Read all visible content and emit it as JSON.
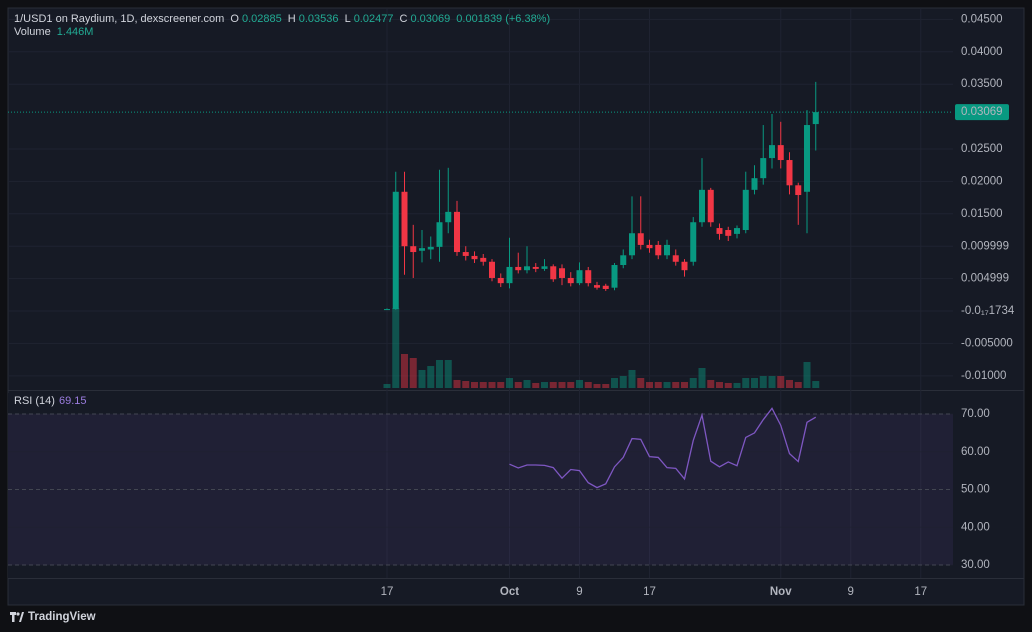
{
  "chart_data": [
    {
      "type": "candlestick",
      "title": "1/USD1 on Raydium, 1D, dexscreener.com",
      "ohlc_labels": [
        "O",
        "H",
        "L",
        "C"
      ],
      "change": 0.001839,
      "change_percent": {
        "value": 6.38,
        "label": "(+6.38%)"
      },
      "categories": [
        "17",
        null,
        null,
        null,
        null,
        null,
        null,
        null,
        null,
        null,
        null,
        null,
        null,
        null,
        "Oct",
        null,
        null,
        null,
        null,
        null,
        null,
        null,
        "9",
        null,
        null,
        null,
        null,
        null,
        null,
        null,
        "17",
        null,
        null,
        null,
        null,
        null,
        null,
        null,
        null,
        null,
        null,
        null,
        null,
        null,
        null,
        "Nov",
        null,
        null,
        null,
        null,
        null,
        null,
        null,
        "9",
        null,
        null,
        null,
        null,
        null,
        null,
        null,
        "17"
      ],
      "open": [
        0.00025,
        0.0003,
        0.0184,
        0.01,
        0.0093,
        0.0095,
        0.0099,
        0.0137,
        0.0153,
        0.0091,
        0.0085,
        0.0082,
        0.0076,
        0.0051,
        0.0043,
        0.0068,
        0.0063,
        0.0068,
        0.0065,
        0.0069,
        0.0066,
        0.0051,
        0.0043,
        0.0063,
        0.004,
        0.0039,
        0.0036,
        0.0071,
        0.0086,
        0.012,
        0.0102,
        0.0102,
        0.0086,
        0.0086,
        0.0076,
        0.0076,
        0.0137,
        0.0187,
        0.0128,
        0.0125,
        0.0119,
        0.0125,
        0.0187,
        0.0205,
        0.0236,
        0.0256,
        0.0233,
        0.0194,
        0.0184,
        0.02885,
        null,
        null,
        null,
        null,
        null,
        null,
        null,
        null,
        null,
        null,
        null,
        null
      ],
      "high": [
        0.0004,
        0.0215,
        0.0215,
        0.0133,
        0.0125,
        0.0115,
        0.0218,
        0.0221,
        0.017,
        0.01,
        0.0092,
        0.0088,
        0.008,
        0.0058,
        0.0113,
        0.009,
        0.01,
        0.0074,
        0.008,
        0.0072,
        0.0072,
        0.006,
        0.0075,
        0.0068,
        0.0045,
        0.0042,
        0.0074,
        0.0095,
        0.0177,
        0.0177,
        0.011,
        0.0108,
        0.011,
        0.0095,
        0.008,
        0.0145,
        0.0236,
        0.019,
        0.0135,
        0.013,
        0.0132,
        0.0215,
        0.0225,
        0.0287,
        0.0304,
        0.0292,
        0.0245,
        0.0198,
        0.031,
        0.03536,
        null,
        null,
        null,
        null,
        null,
        null,
        null,
        null,
        null,
        null,
        null,
        null
      ],
      "low": [
        0.0002,
        0.0002,
        0.0056,
        0.0051,
        0.0075,
        0.008,
        0.0076,
        0.012,
        0.0085,
        0.0078,
        0.0074,
        0.007,
        0.0046,
        0.0037,
        0.0035,
        0.0058,
        0.0058,
        0.006,
        0.0062,
        0.0045,
        0.004,
        0.0038,
        0.004,
        0.0038,
        0.0033,
        0.0031,
        0.0032,
        0.0066,
        0.008,
        0.0095,
        0.009,
        0.008,
        0.008,
        0.007,
        0.0053,
        0.007,
        0.013,
        0.013,
        0.011,
        0.0108,
        0.0112,
        0.012,
        0.018,
        0.0195,
        0.022,
        0.022,
        0.018,
        0.0133,
        0.012,
        0.02477,
        null,
        null,
        null,
        null,
        null,
        null,
        null,
        null,
        null,
        null,
        null,
        null
      ],
      "close": [
        0.0003,
        0.0184,
        0.01,
        0.0091,
        0.0097,
        0.0099,
        0.0137,
        0.0153,
        0.0091,
        0.0085,
        0.008,
        0.0076,
        0.0051,
        0.0043,
        0.0068,
        0.0063,
        0.0069,
        0.0065,
        0.0069,
        0.0049,
        0.0051,
        0.0043,
        0.0063,
        0.0043,
        0.0036,
        0.0034,
        0.0071,
        0.0086,
        0.012,
        0.0102,
        0.0097,
        0.0086,
        0.0102,
        0.0076,
        0.0063,
        0.0137,
        0.0187,
        0.0137,
        0.0119,
        0.0116,
        0.0128,
        0.0187,
        0.0205,
        0.0236,
        0.0256,
        0.0233,
        0.0194,
        0.0179,
        0.0287,
        0.03069,
        null,
        null,
        null,
        null,
        null,
        null,
        null,
        null,
        null,
        null,
        null,
        null
      ],
      "up_color": "#089981",
      "down_color": "#f23645",
      "volume": {
        "name": "Volume",
        "last_value_label": "1.446M",
        "values": [
          830000,
          16560000,
          7040000,
          6210000,
          3730000,
          4550000,
          5800000,
          5800000,
          1660000,
          1450000,
          1240000,
          1240000,
          1240000,
          1240000,
          2070000,
          1240000,
          1660000,
          1040000,
          1240000,
          1240000,
          1240000,
          1240000,
          1660000,
          1240000,
          830000,
          830000,
          2070000,
          2480000,
          3730000,
          2070000,
          1240000,
          1240000,
          1240000,
          1240000,
          1240000,
          2070000,
          4140000,
          1660000,
          1240000,
          1040000,
          1040000,
          2070000,
          2070000,
          2480000,
          2480000,
          2480000,
          1660000,
          1240000,
          5380000,
          1446000,
          null,
          null,
          null,
          null,
          null,
          null,
          null,
          null,
          null,
          null,
          null,
          null
        ]
      },
      "ylim": [
        -0.01188,
        0.04676
      ],
      "yticks": [
        {
          "value": 0.045,
          "label": "0.04500"
        },
        {
          "value": 0.04,
          "label": "0.04000"
        },
        {
          "value": 0.035,
          "label": "0.03500"
        },
        {
          "value": 0.025,
          "label": "0.02500"
        },
        {
          "value": 0.02,
          "label": "0.02000"
        },
        {
          "value": 0.015,
          "label": "0.01500"
        },
        0.009999,
        0.004999,
        {
          "value": -1.734e-18,
          "label": "-0.0₁₇1734"
        },
        {
          "value": -0.005,
          "label": "-0.005000"
        },
        {
          "value": -0.01,
          "label": "-0.01000"
        }
      ],
      "grid": true,
      "last_price_line": true
    },
    {
      "type": "line",
      "title": "RSI (14)",
      "color": "#7e57c2",
      "values": [
        null,
        null,
        null,
        null,
        null,
        null,
        null,
        null,
        null,
        null,
        null,
        null,
        null,
        null,
        56.7,
        55.7,
        56.5,
        56.5,
        56.4,
        55.8,
        53,
        55.3,
        55,
        51.8,
        50.5,
        51.5,
        56,
        58.5,
        63.5,
        63.3,
        58.7,
        58.5,
        55.8,
        55.6,
        52.8,
        63,
        69.7,
        57.5,
        56,
        57.3,
        56.3,
        63.8,
        65,
        68.5,
        71.5,
        67,
        59.5,
        57.4,
        67.8,
        69.15,
        null,
        null,
        null,
        null,
        null,
        null,
        null,
        null,
        null,
        null,
        null,
        null
      ],
      "ylim": [
        26.55,
        75.57
      ],
      "yticks": [
        {
          "value": 70,
          "label": "70.00"
        },
        {
          "value": 60,
          "label": "60.00"
        },
        {
          "value": 50,
          "label": "50.00"
        },
        {
          "value": 40,
          "label": "40.00"
        },
        {
          "value": 30,
          "label": "30.00"
        }
      ],
      "levels": [
        70,
        50,
        30
      ],
      "band_color": "#7e57c2",
      "grid": true
    }
  ],
  "footer": "TradingView"
}
